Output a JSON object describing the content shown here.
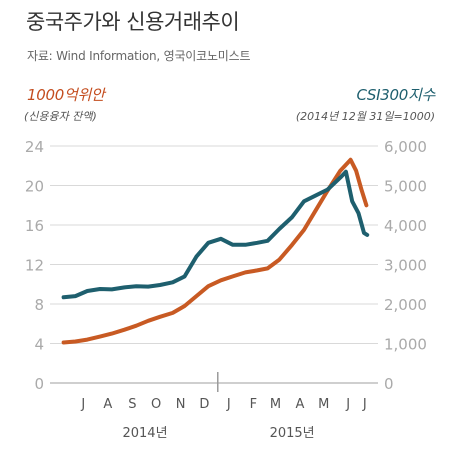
{
  "title": "중국주가와 신용거래추이",
  "source": "자료: Wind Information, 영국이코노미스트",
  "left_axis": {
    "label": "1000억위안",
    "sublabel": "(신용융자 잔액)"
  },
  "right_axis": {
    "label": "CSI300지수",
    "sublabel": "(2014년 12월 31일=1000)"
  },
  "colors": {
    "margin": "#c85a23",
    "csi": "#1e5f6e",
    "axis_text": "#aaaaaa",
    "grid": "#d9d9d9"
  },
  "chart_data": {
    "type": "line",
    "title": "중국주가와 신용거래추이",
    "x_months": [
      "J",
      "A",
      "S",
      "O",
      "N",
      "D",
      "J",
      "F",
      "M",
      "A",
      "M",
      "J",
      "J"
    ],
    "x_years": [
      "2014년",
      "2015년"
    ],
    "x_range": [
      "2014-06-18",
      "2015-07-10"
    ],
    "y_left": {
      "label": "1000억위안",
      "range": [
        0,
        24
      ],
      "ticks": [
        "0",
        "4",
        "8",
        "12",
        "16",
        "20",
        "24"
      ]
    },
    "y_right": {
      "label": "CSI300지수",
      "range": [
        0,
        6000
      ],
      "ticks": [
        "0",
        "1,000",
        "2,000",
        "3,000",
        "4,000",
        "5,000",
        "6,000"
      ]
    },
    "grid": true,
    "series": [
      {
        "name": "1000억위안",
        "axis": "left",
        "points": [
          [
            "2014-06-20",
            4.1
          ],
          [
            "2014-07-05",
            4.2
          ],
          [
            "2014-07-20",
            4.4
          ],
          [
            "2014-08-05",
            4.7
          ],
          [
            "2014-08-20",
            5.0
          ],
          [
            "2014-09-05",
            5.4
          ],
          [
            "2014-09-20",
            5.8
          ],
          [
            "2014-10-05",
            6.3
          ],
          [
            "2014-10-20",
            6.7
          ],
          [
            "2014-11-05",
            7.1
          ],
          [
            "2014-11-20",
            7.8
          ],
          [
            "2014-12-05",
            8.8
          ],
          [
            "2014-12-20",
            9.8
          ],
          [
            "2015-01-05",
            10.4
          ],
          [
            "2015-01-20",
            10.8
          ],
          [
            "2015-02-05",
            11.2
          ],
          [
            "2015-02-20",
            11.4
          ],
          [
            "2015-03-05",
            11.6
          ],
          [
            "2015-03-20",
            12.5
          ],
          [
            "2015-04-05",
            14.0
          ],
          [
            "2015-04-20",
            15.5
          ],
          [
            "2015-05-05",
            17.5
          ],
          [
            "2015-05-20",
            19.5
          ],
          [
            "2015-06-05",
            21.5
          ],
          [
            "2015-06-18",
            22.6
          ],
          [
            "2015-06-25",
            21.5
          ],
          [
            "2015-07-02",
            19.5
          ],
          [
            "2015-07-08",
            18.0
          ]
        ]
      },
      {
        "name": "CSI300지수",
        "axis": "right",
        "points": [
          [
            "2014-06-20",
            2170
          ],
          [
            "2014-07-05",
            2200
          ],
          [
            "2014-07-20",
            2330
          ],
          [
            "2014-08-05",
            2380
          ],
          [
            "2014-08-20",
            2370
          ],
          [
            "2014-09-05",
            2420
          ],
          [
            "2014-09-20",
            2450
          ],
          [
            "2014-10-05",
            2440
          ],
          [
            "2014-10-20",
            2480
          ],
          [
            "2014-11-05",
            2550
          ],
          [
            "2014-11-20",
            2700
          ],
          [
            "2014-12-05",
            3200
          ],
          [
            "2014-12-20",
            3550
          ],
          [
            "2015-01-05",
            3650
          ],
          [
            "2015-01-20",
            3500
          ],
          [
            "2015-02-05",
            3500
          ],
          [
            "2015-02-20",
            3550
          ],
          [
            "2015-03-05",
            3600
          ],
          [
            "2015-03-20",
            3900
          ],
          [
            "2015-04-05",
            4200
          ],
          [
            "2015-04-20",
            4600
          ],
          [
            "2015-05-05",
            4750
          ],
          [
            "2015-05-20",
            4900
          ],
          [
            "2015-06-05",
            5200
          ],
          [
            "2015-06-12",
            5350
          ],
          [
            "2015-06-20",
            4600
          ],
          [
            "2015-06-28",
            4300
          ],
          [
            "2015-07-05",
            3800
          ],
          [
            "2015-07-09",
            3750
          ]
        ]
      }
    ]
  }
}
